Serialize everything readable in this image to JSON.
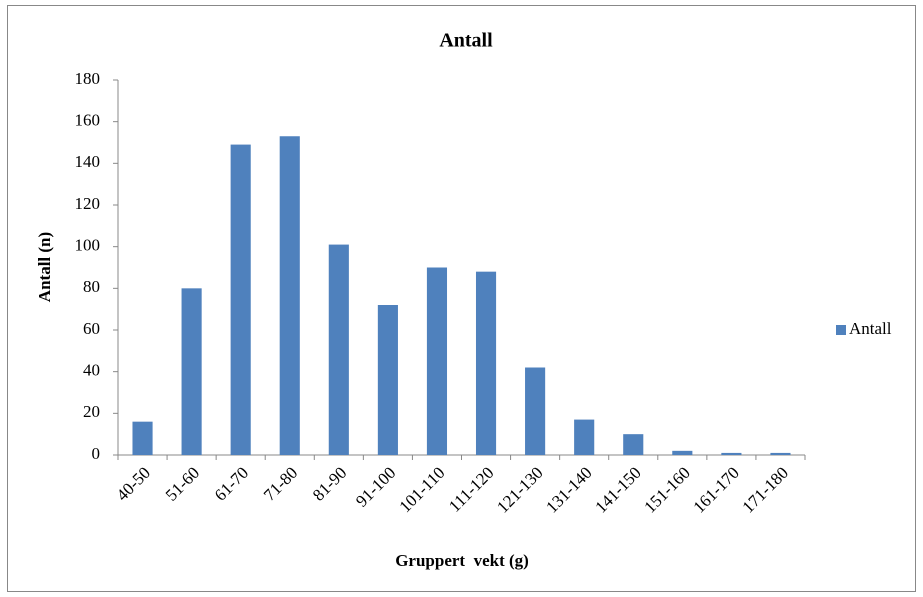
{
  "chart_data": {
    "type": "bar",
    "title": "Antall",
    "y_label": "Antall (n)",
    "x_label": "Gruppert  vekt (g)",
    "categories": [
      "40-50",
      "51-60",
      "61-70",
      "71-80",
      "81-90",
      "91-100",
      "101-110",
      "111-120",
      "121-130",
      "131-140",
      "141-150",
      "151-160",
      "161-170",
      "171-180"
    ],
    "series": [
      {
        "name": "Antall",
        "color": "#4f81bd",
        "values": [
          16,
          80,
          149,
          153,
          101,
          72,
          90,
          88,
          42,
          17,
          10,
          2,
          1,
          1
        ]
      }
    ],
    "ylim": [
      0,
      180
    ],
    "yticks": [
      0,
      20,
      40,
      60,
      80,
      100,
      120,
      140,
      160,
      180
    ],
    "grid": false,
    "legend": "right"
  }
}
